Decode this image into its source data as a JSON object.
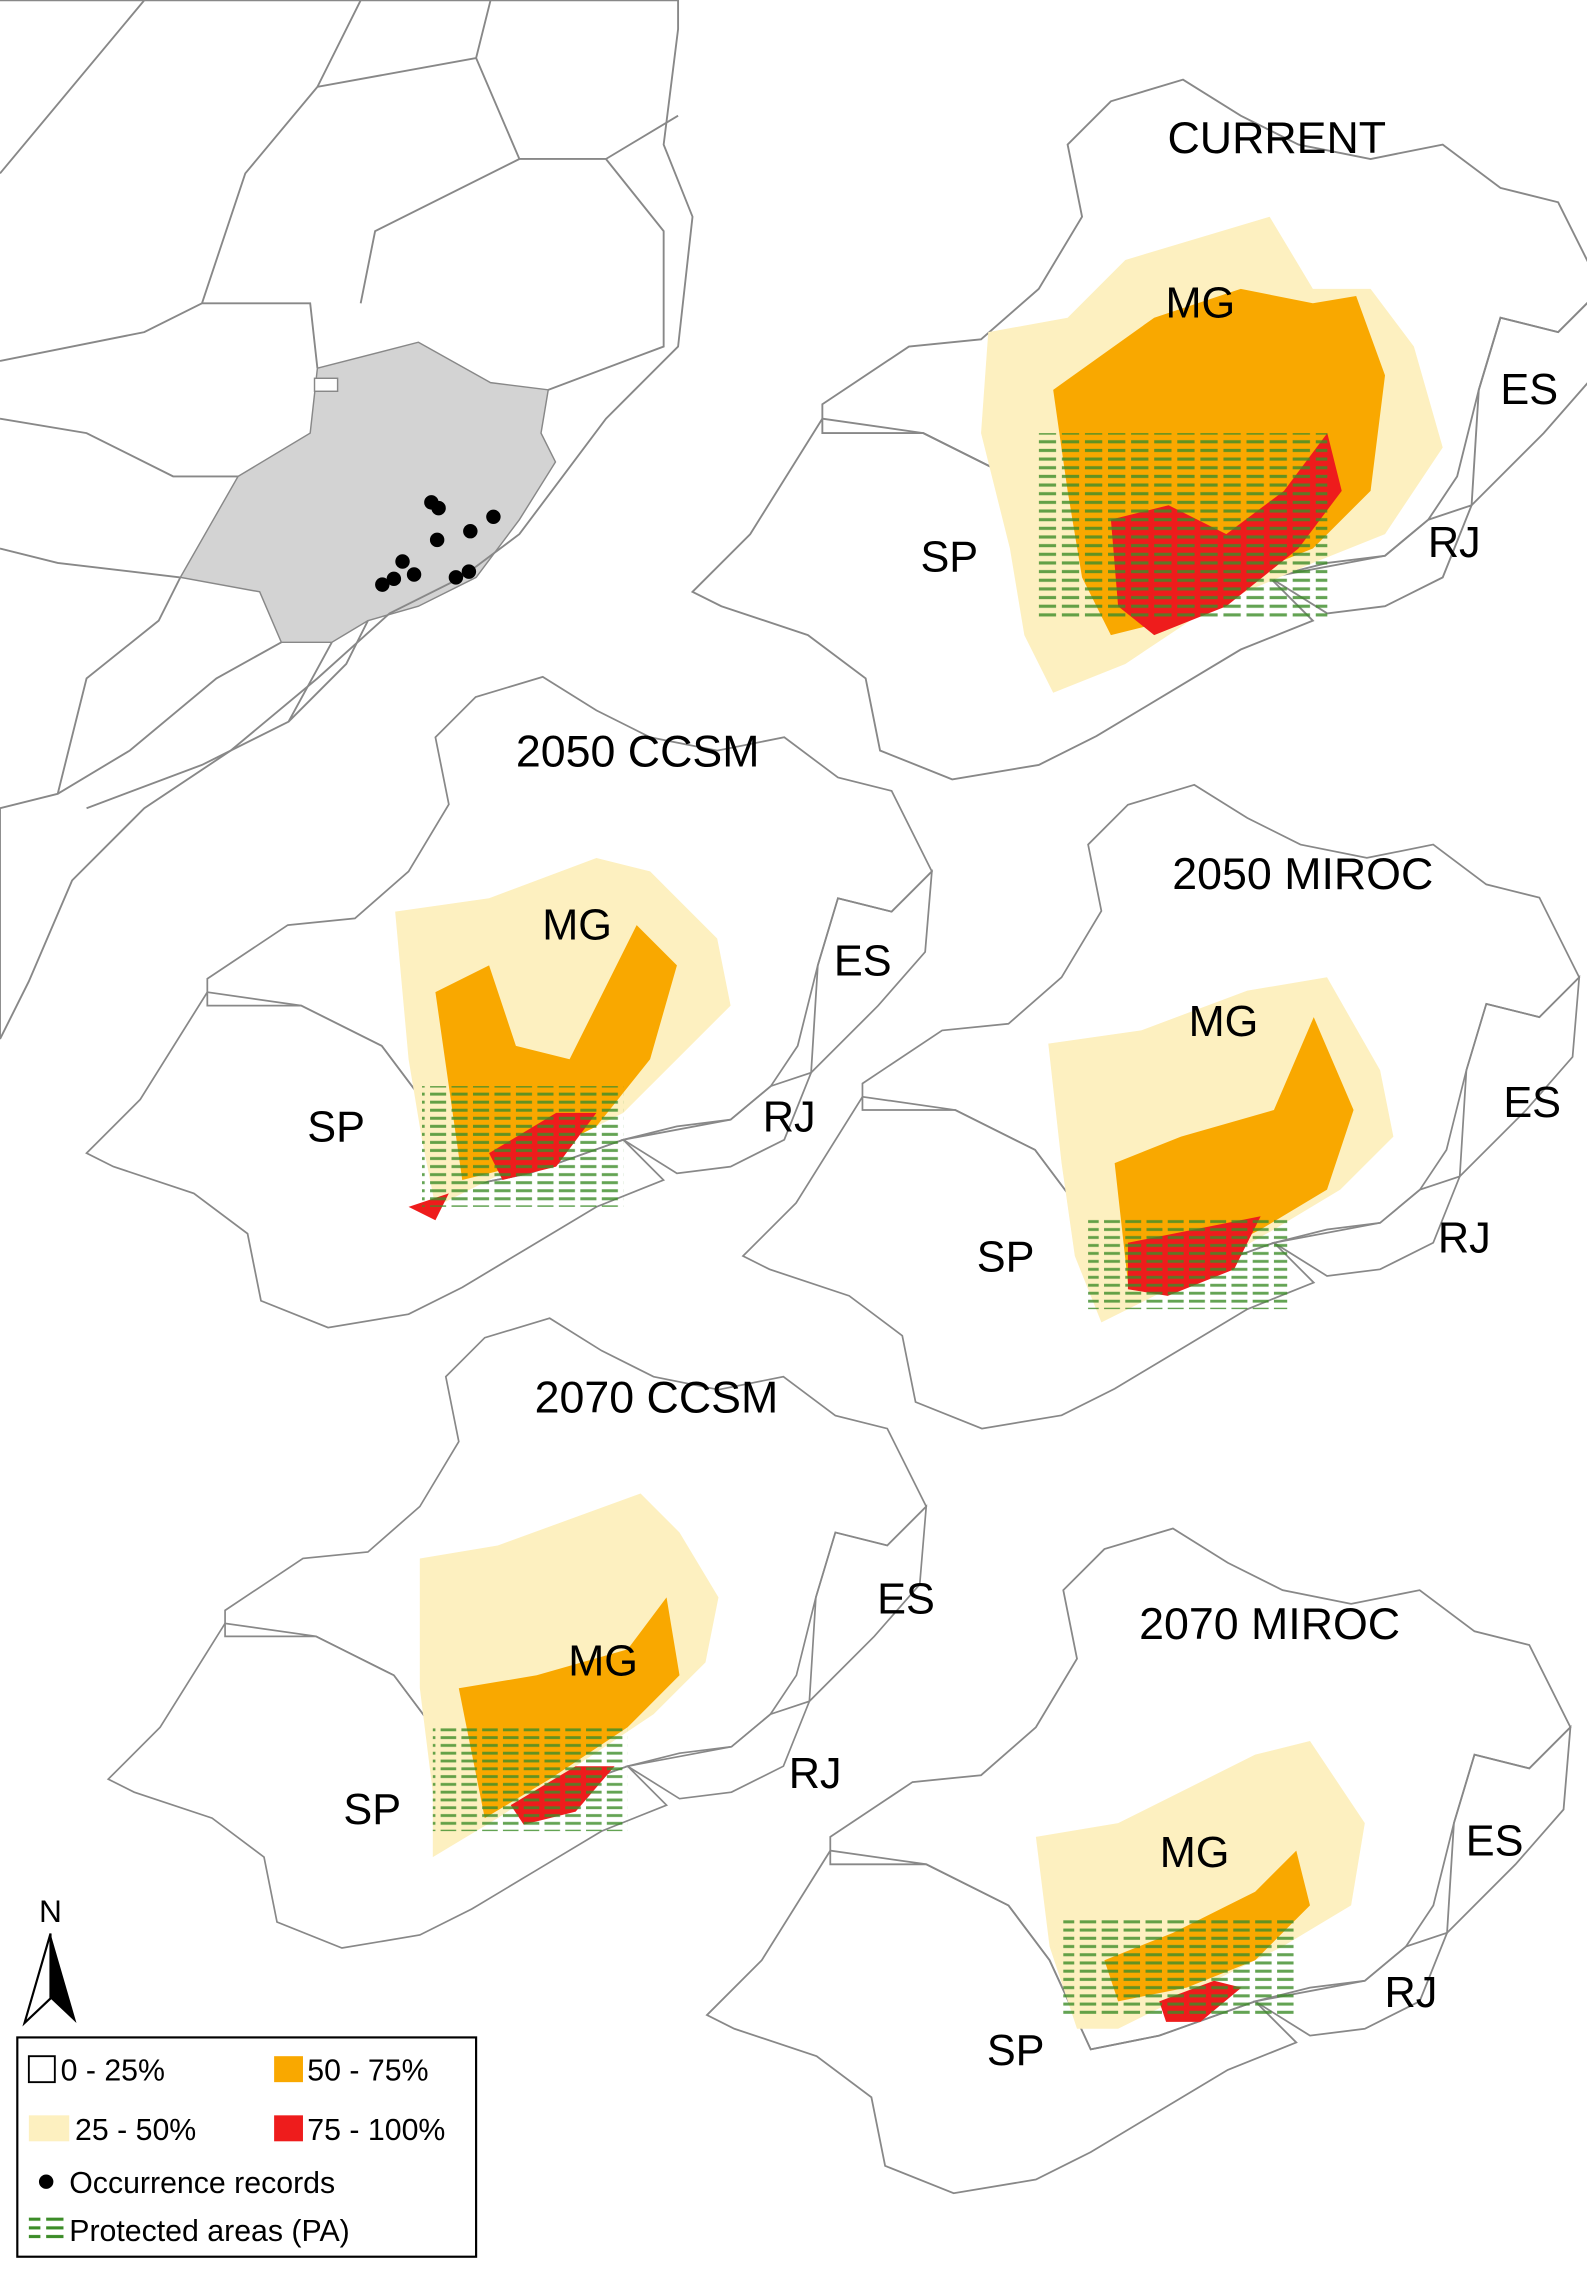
{
  "panels": [
    {
      "title": "CURRENT",
      "labels": {
        "MG": "MG",
        "ES": "ES",
        "SP": "SP",
        "RJ": "RJ"
      }
    },
    {
      "title": "2050 CCSM",
      "labels": {
        "MG": "MG",
        "ES": "ES",
        "SP": "SP",
        "RJ": "RJ"
      }
    },
    {
      "title": "2050 MIROC",
      "labels": {
        "MG": "MG",
        "ES": "ES",
        "SP": "SP",
        "RJ": "RJ"
      }
    },
    {
      "title": "2070 CCSM",
      "labels": {
        "MG": "MG",
        "ES": "ES",
        "SP": "SP",
        "RJ": "RJ"
      }
    },
    {
      "title": "2070 MIROC",
      "labels": {
        "MG": "MG",
        "ES": "ES",
        "SP": "SP",
        "RJ": "RJ"
      }
    }
  ],
  "north": "N",
  "legend": [
    "0 - 25%",
    "50 - 75%",
    "25 - 50%",
    "75 - 100%",
    "Occurrence records",
    "Protected areas (PA)"
  ]
}
